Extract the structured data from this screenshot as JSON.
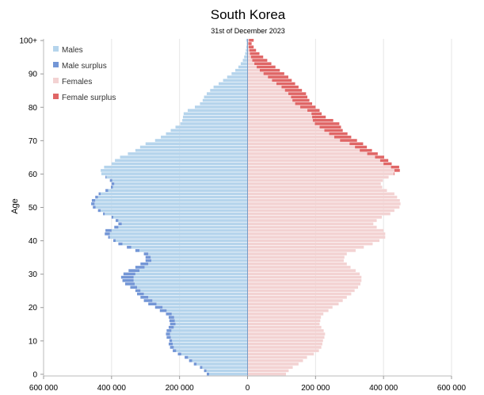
{
  "chart_data": {
    "type": "bar",
    "orientation": "horizontal-pyramid",
    "title": "South Korea",
    "subtitle": "31st of December 2023",
    "ylabel": "Age",
    "xlim": [
      -600000,
      600000
    ],
    "x_ticks": [
      {
        "value": -600000,
        "label": "600 000"
      },
      {
        "value": -400000,
        "label": "400 000"
      },
      {
        "value": -200000,
        "label": "200 000"
      },
      {
        "value": 0,
        "label": "0"
      },
      {
        "value": 200000,
        "label": "200 000"
      },
      {
        "value": 400000,
        "label": "400 000"
      },
      {
        "value": 600000,
        "label": "600 000"
      }
    ],
    "y_ticks": [
      {
        "value": 0,
        "label": "0"
      },
      {
        "value": 10,
        "label": "10"
      },
      {
        "value": 20,
        "label": "20"
      },
      {
        "value": 30,
        "label": "30"
      },
      {
        "value": 40,
        "label": "40"
      },
      {
        "value": 50,
        "label": "50"
      },
      {
        "value": 60,
        "label": "60"
      },
      {
        "value": 70,
        "label": "70"
      },
      {
        "value": 80,
        "label": "80"
      },
      {
        "value": 90,
        "label": "90"
      },
      {
        "value": 100,
        "label": "100+"
      }
    ],
    "legend": {
      "placement": "top-left",
      "entries": [
        {
          "name": "Males",
          "color": "#b5d4ec"
        },
        {
          "name": "Male surplus",
          "color": "#7396d6"
        },
        {
          "name": "Females",
          "color": "#f3d2d2"
        },
        {
          "name": "Female surplus",
          "color": "#e06666"
        }
      ]
    },
    "grid": "vertical",
    "ages": [
      0,
      1,
      2,
      3,
      4,
      5,
      6,
      7,
      8,
      9,
      10,
      11,
      12,
      13,
      14,
      15,
      16,
      17,
      18,
      19,
      20,
      21,
      22,
      23,
      24,
      25,
      26,
      27,
      28,
      29,
      30,
      31,
      32,
      33,
      34,
      35,
      36,
      37,
      38,
      39,
      40,
      41,
      42,
      43,
      44,
      45,
      46,
      47,
      48,
      49,
      50,
      51,
      52,
      53,
      54,
      55,
      56,
      57,
      58,
      59,
      60,
      61,
      62,
      63,
      64,
      65,
      66,
      67,
      68,
      69,
      70,
      71,
      72,
      73,
      74,
      75,
      76,
      77,
      78,
      79,
      80,
      81,
      82,
      83,
      84,
      85,
      86,
      87,
      88,
      89,
      90,
      91,
      92,
      93,
      94,
      95,
      96,
      97,
      98,
      99,
      100
    ],
    "series": [
      {
        "name": "Males",
        "values": [
          120000,
          128000,
          140000,
          158000,
          172000,
          185000,
          205000,
          220000,
          228000,
          232000,
          230000,
          238000,
          240000,
          238000,
          232000,
          228000,
          230000,
          232000,
          240000,
          258000,
          272000,
          292000,
          305000,
          315000,
          325000,
          330000,
          345000,
          360000,
          368000,
          372000,
          365000,
          350000,
          330000,
          315000,
          300000,
          300000,
          305000,
          330000,
          355000,
          380000,
          395000,
          410000,
          420000,
          418000,
          392000,
          380000,
          388000,
          400000,
          425000,
          440000,
          455000,
          460000,
          458000,
          448000,
          438000,
          418000,
          402000,
          400000,
          405000,
          418000,
          430000,
          432000,
          422000,
          400000,
          390000,
          375000,
          352000,
          330000,
          316000,
          300000,
          272000,
          255000,
          240000,
          226000,
          212000,
          198000,
          192000,
          190000,
          188000,
          176000,
          155000,
          140000,
          132000,
          128000,
          120000,
          110000,
          100000,
          85000,
          72000,
          60000,
          47000,
          36000,
          27000,
          20000,
          14000,
          10000,
          7000,
          5000,
          3500,
          2500,
          4000
        ]
      },
      {
        "name": "Females",
        "values": [
          113000,
          121000,
          133000,
          150000,
          163000,
          175000,
          195000,
          210000,
          217000,
          220000,
          222000,
          226000,
          228000,
          224000,
          217000,
          212000,
          214000,
          216000,
          223000,
          238000,
          250000,
          268000,
          280000,
          292000,
          305000,
          315000,
          325000,
          332000,
          335000,
          335000,
          330000,
          318000,
          303000,
          292000,
          283000,
          285000,
          292000,
          318000,
          342000,
          368000,
          388000,
          405000,
          405000,
          400000,
          380000,
          370000,
          380000,
          395000,
          420000,
          432000,
          447000,
          450000,
          448000,
          440000,
          432000,
          410000,
          396000,
          392000,
          398000,
          415000,
          432000,
          448000,
          446000,
          424000,
          414000,
          402000,
          383000,
          366000,
          351000,
          340000,
          322000,
          305000,
          294000,
          280000,
          275000,
          270000,
          252000,
          230000,
          218000,
          212000,
          200000,
          190000,
          182000,
          176000,
          172000,
          160000,
          150000,
          140000,
          130000,
          120000,
          108000,
          95000,
          82000,
          70000,
          58000,
          46000,
          35000,
          25000,
          18000,
          12000,
          18000
        ]
      }
    ]
  }
}
